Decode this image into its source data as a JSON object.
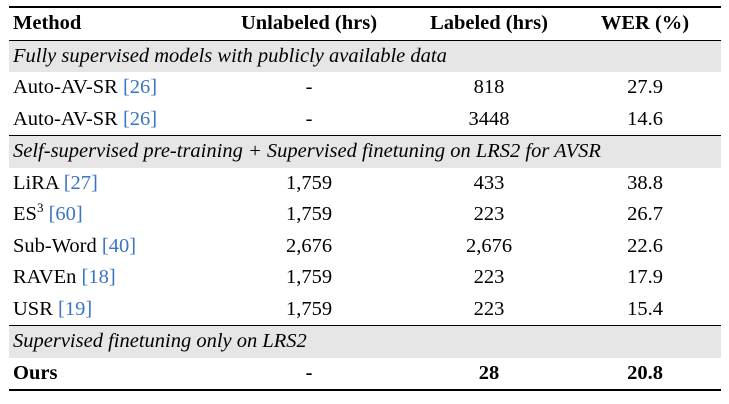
{
  "header": {
    "method": "Method",
    "unlabeled": "Unlabeled (hrs)",
    "labeled": "Labeled (hrs)",
    "wer": "WER (%)"
  },
  "sections": [
    {
      "title": "Fully supervised models with publicly available data",
      "rows": [
        {
          "method": "Auto-AV-SR",
          "cite": "26",
          "unlabeled": "-",
          "labeled": "818",
          "wer": "27.9"
        },
        {
          "method": "Auto-AV-SR",
          "cite": "26",
          "unlabeled": "-",
          "labeled": "3448",
          "wer": "14.6"
        }
      ]
    },
    {
      "title": "Self-supervised pre-training + Supervised finetuning on LRS2 for AVSR",
      "rows": [
        {
          "method": "LiRA",
          "cite": "27",
          "unlabeled": "1,759",
          "labeled": "433",
          "wer": "38.8"
        },
        {
          "method": "ES",
          "sup": "3",
          "cite": "60",
          "unlabeled": "1,759",
          "labeled": "223",
          "wer": "26.7"
        },
        {
          "method": "Sub-Word",
          "cite": "40",
          "unlabeled": "2,676",
          "labeled": "2,676",
          "wer": "22.6"
        },
        {
          "method": "RAVEn",
          "cite": "18",
          "unlabeled": "1,759",
          "labeled": "223",
          "wer": "17.9"
        },
        {
          "method": "USR",
          "cite": "19",
          "unlabeled": "1,759",
          "labeled": "223",
          "wer": "15.4"
        }
      ]
    },
    {
      "title": "Supervised finetuning only on LRS2",
      "rows": [
        {
          "method": "Ours",
          "unlabeled": "-",
          "labeled": "28",
          "wer": "20.8"
        }
      ]
    }
  ],
  "bracket_open": "[",
  "bracket_close": "]"
}
